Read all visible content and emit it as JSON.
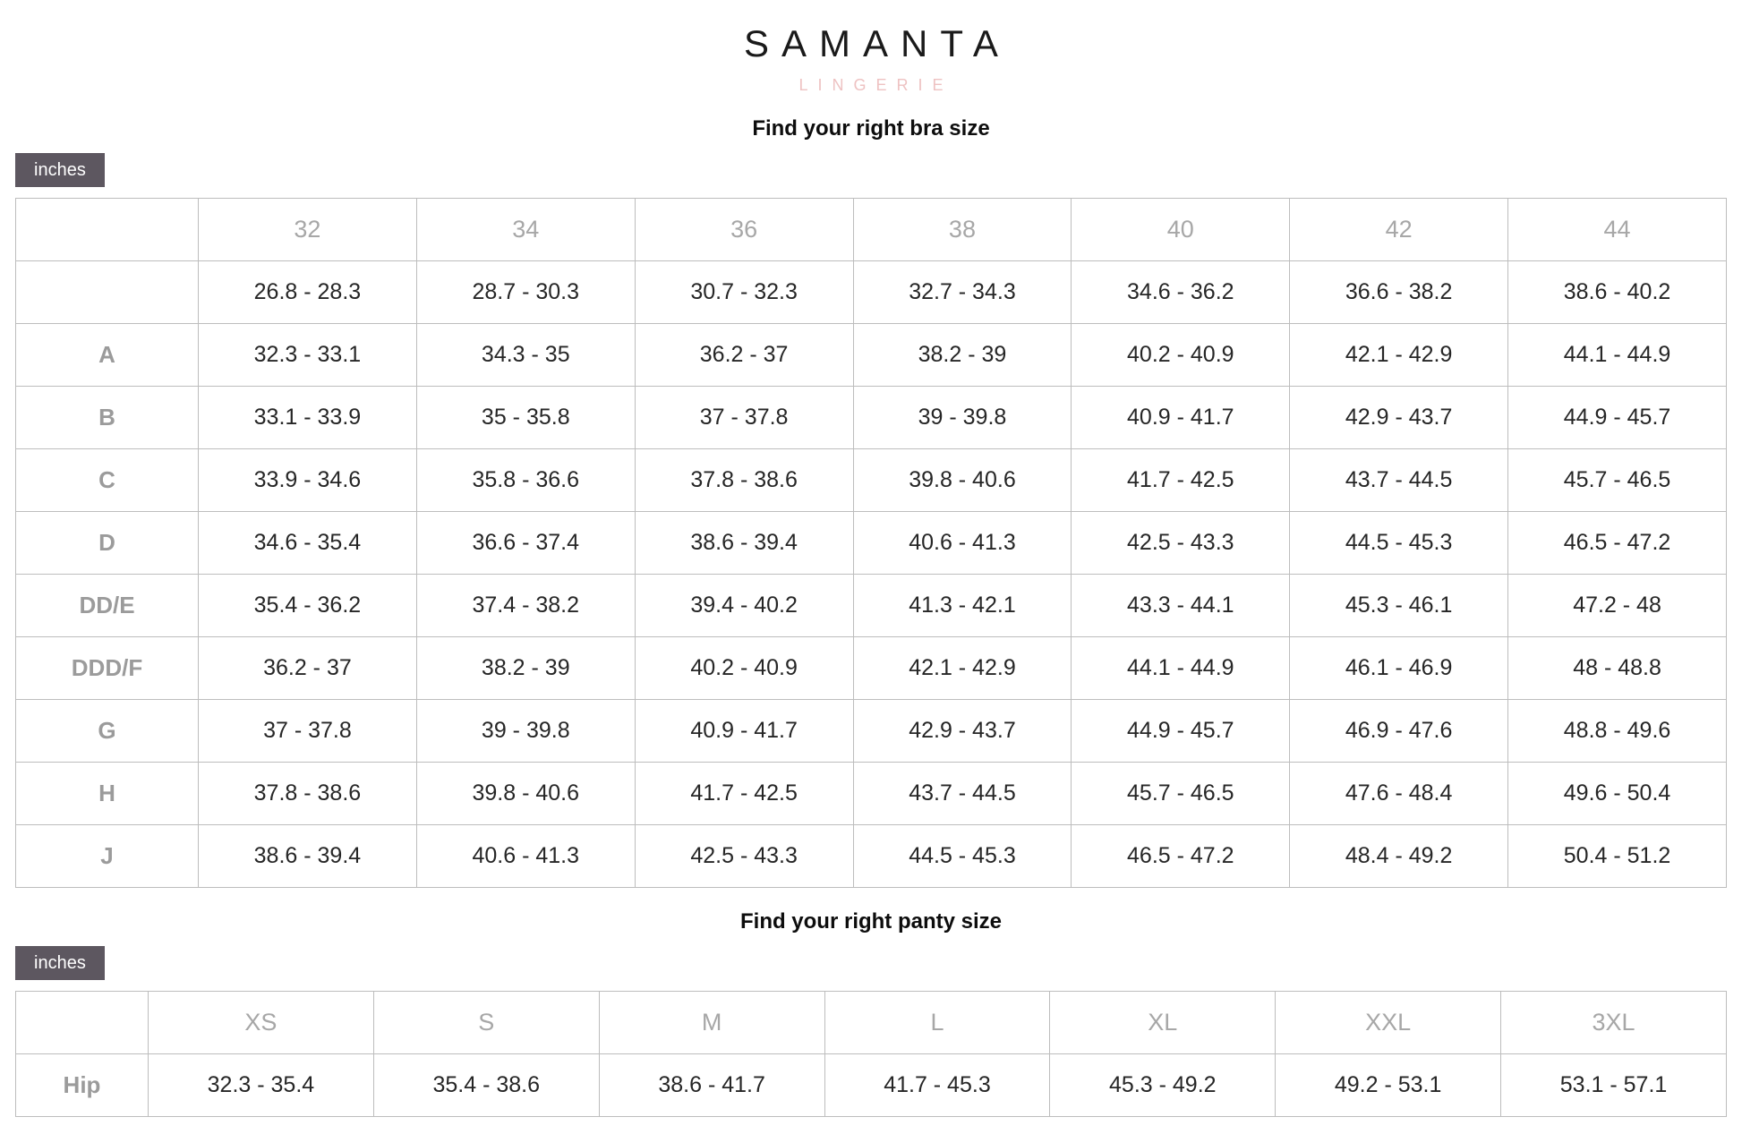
{
  "brand": {
    "name": "SAMANTA",
    "tagline": "LINGERIE"
  },
  "colors": {
    "accent_tag": "#5d5760",
    "tagline_pink": "#eec2c2"
  },
  "bra_section": {
    "title": "Find your right bra size",
    "unit_label": "inches",
    "table": {
      "column_headers": [
        "",
        "32",
        "34",
        "36",
        "38",
        "40",
        "42",
        "44"
      ],
      "rows": [
        {
          "label": "",
          "values": [
            "26.8 - 28.3",
            "28.7 - 30.3",
            "30.7 - 32.3",
            "32.7 - 34.3",
            "34.6 - 36.2",
            "36.6 - 38.2",
            "38.6 - 40.2"
          ]
        },
        {
          "label": "A",
          "values": [
            "32.3 - 33.1",
            "34.3 - 35",
            "36.2 - 37",
            "38.2 - 39",
            "40.2 - 40.9",
            "42.1 - 42.9",
            "44.1 - 44.9"
          ]
        },
        {
          "label": "B",
          "values": [
            "33.1 - 33.9",
            "35 - 35.8",
            "37 - 37.8",
            "39 - 39.8",
            "40.9 - 41.7",
            "42.9 - 43.7",
            "44.9 - 45.7"
          ]
        },
        {
          "label": "C",
          "values": [
            "33.9 - 34.6",
            "35.8 - 36.6",
            "37.8 - 38.6",
            "39.8 - 40.6",
            "41.7 - 42.5",
            "43.7 - 44.5",
            "45.7 - 46.5"
          ]
        },
        {
          "label": "D",
          "values": [
            "34.6 - 35.4",
            "36.6 - 37.4",
            "38.6 - 39.4",
            "40.6 - 41.3",
            "42.5 - 43.3",
            "44.5 - 45.3",
            "46.5 - 47.2"
          ]
        },
        {
          "label": "DD/E",
          "values": [
            "35.4 - 36.2",
            "37.4 - 38.2",
            "39.4 - 40.2",
            "41.3 - 42.1",
            "43.3 - 44.1",
            "45.3 - 46.1",
            "47.2 - 48"
          ]
        },
        {
          "label": "DDD/F",
          "values": [
            "36.2 - 37",
            "38.2 - 39",
            "40.2 - 40.9",
            "42.1 - 42.9",
            "44.1 - 44.9",
            "46.1 - 46.9",
            "48 - 48.8"
          ]
        },
        {
          "label": "G",
          "values": [
            "37 - 37.8",
            "39 - 39.8",
            "40.9 - 41.7",
            "42.9 - 43.7",
            "44.9 - 45.7",
            "46.9 - 47.6",
            "48.8 - 49.6"
          ]
        },
        {
          "label": "H",
          "values": [
            "37.8 - 38.6",
            "39.8 - 40.6",
            "41.7 - 42.5",
            "43.7 - 44.5",
            "45.7 - 46.5",
            "47.6 - 48.4",
            "49.6 - 50.4"
          ]
        },
        {
          "label": "J",
          "values": [
            "38.6 - 39.4",
            "40.6 - 41.3",
            "42.5 - 43.3",
            "44.5 - 45.3",
            "46.5 - 47.2",
            "48.4 - 49.2",
            "50.4 - 51.2"
          ]
        }
      ]
    }
  },
  "panty_section": {
    "title": "Find your right panty size",
    "unit_label": "inches",
    "table": {
      "column_headers": [
        "",
        "XS",
        "S",
        "M",
        "L",
        "XL",
        "XXL",
        "3XL"
      ],
      "rows": [
        {
          "label": "Hip",
          "values": [
            "32.3 - 35.4",
            "35.4 - 38.6",
            "38.6 - 41.7",
            "41.7 - 45.3",
            "45.3 - 49.2",
            "49.2 - 53.1",
            "53.1 - 57.1"
          ]
        }
      ]
    }
  }
}
